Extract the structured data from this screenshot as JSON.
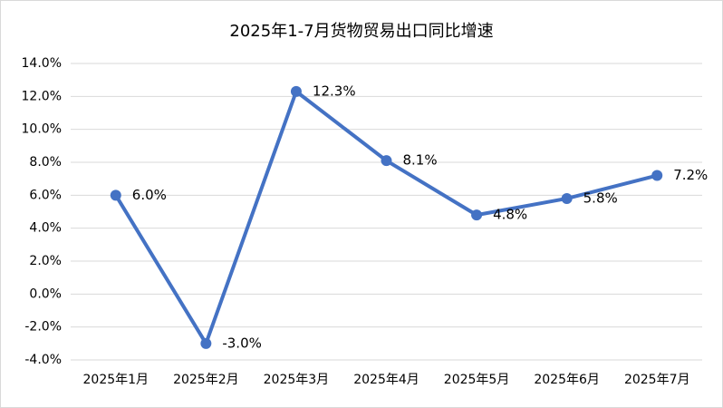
{
  "chart_data": {
    "type": "line",
    "title": "2025年1-7月货物贸易出口同比增速",
    "categories": [
      "2025年1月",
      "2025年2月",
      "2025年3月",
      "2025年4月",
      "2025年5月",
      "2025年6月",
      "2025年7月"
    ],
    "series": [
      {
        "color": "#4472c4",
        "values": [
          6.0,
          -3.0,
          12.3,
          8.1,
          4.8,
          5.8,
          7.2
        ],
        "value_labels": [
          "6.0%",
          "-3.0%",
          "12.3%",
          "8.1%",
          "4.8%",
          "5.8%",
          "7.2%"
        ]
      }
    ],
    "ylim": [
      -4,
      14
    ],
    "yticks": [
      {
        "value": -4,
        "label": "-4.0%"
      },
      {
        "value": -2,
        "label": "-2.0%"
      },
      {
        "value": 0,
        "label": "0.0%"
      },
      {
        "value": 2,
        "label": "2.0%"
      },
      {
        "value": 4,
        "label": "4.0%"
      },
      {
        "value": 6,
        "label": "6.0%"
      },
      {
        "value": 8,
        "label": "8.0%"
      },
      {
        "value": 10,
        "label": "10.0%"
      },
      {
        "value": 12,
        "label": "12.0%"
      },
      {
        "value": 14,
        "label": "14.0%"
      }
    ],
    "grid": true
  }
}
